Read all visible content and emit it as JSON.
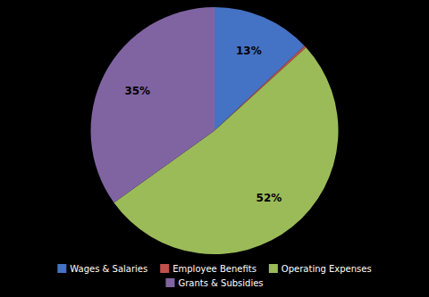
{
  "chart_data": {
    "type": "pie",
    "categories": [
      "Wages & Salaries",
      "Employee Benefits",
      "Operating Expenses",
      "Grants & Subsidies"
    ],
    "values": [
      13,
      0.3,
      52,
      35
    ],
    "value_labels": [
      "13%",
      null,
      "52%",
      "35%"
    ],
    "colors": [
      "#4472C4",
      "#C0504D",
      "#9BBB59",
      "#8064A2"
    ],
    "data_labels": true,
    "legend": "bottom"
  }
}
